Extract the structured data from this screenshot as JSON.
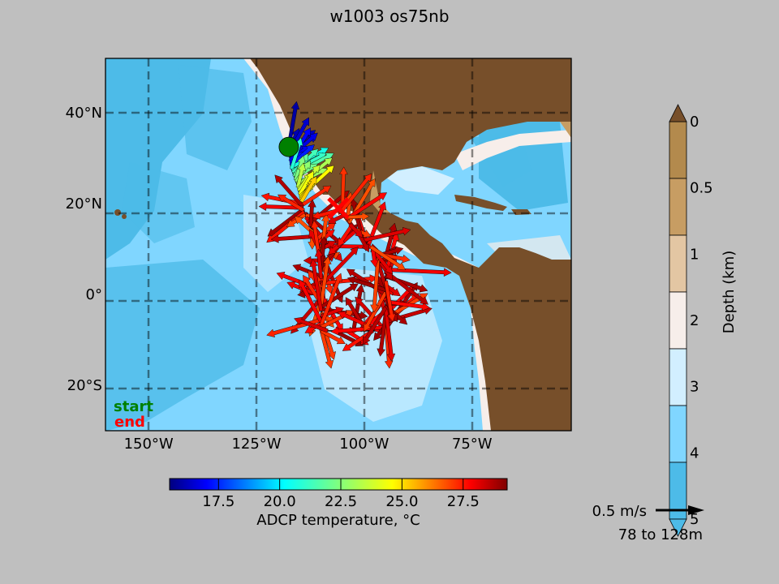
{
  "title": "w1003 os75nb",
  "chart_data": {
    "type": "map-quiver",
    "title": "w1003 os75nb",
    "lon_range": [
      -160,
      -52
    ],
    "lat_range": [
      -30,
      52
    ],
    "lon_ticks": [
      -150,
      -125,
      -100,
      -75
    ],
    "lon_tick_labels": [
      "150°W",
      "125°W",
      "100°W",
      "75°W"
    ],
    "lat_ticks": [
      40,
      20,
      0,
      -20
    ],
    "lat_tick_labels": [
      "40°N",
      "20°N",
      "0°",
      "20°S"
    ],
    "grid": true,
    "track": [
      [
        -117.5,
        32.5
      ],
      [
        -117.0,
        28.0
      ],
      [
        -115.5,
        24.0
      ],
      [
        -114.5,
        20.0
      ],
      [
        -113.5,
        17.0
      ],
      [
        -110.0,
        10.0
      ],
      [
        -110.0,
        5.0
      ],
      [
        -110.0,
        0.0
      ],
      [
        -110.0,
        -4.0
      ],
      [
        -110.0,
        -8.0
      ],
      [
        -95.0,
        -8.0
      ],
      [
        -95.0,
        -4.0
      ],
      [
        -95.0,
        0.0
      ],
      [
        -95.0,
        5.0
      ],
      [
        -98.0,
        10.0
      ],
      [
        -103.0,
        15.0
      ],
      [
        -106.0,
        19.0
      ]
    ],
    "start": {
      "label": "start",
      "lon": -117.5,
      "lat": 32.5,
      "color": "#008000"
    },
    "end": {
      "label": "end",
      "lon": -106,
      "lat": 19,
      "color": "#ff0000"
    },
    "temperature_colorbar": {
      "label": "ADCP temperature, °C",
      "range": [
        15.5,
        29.3
      ],
      "ticks": [
        17.5,
        20.0,
        22.5,
        25.0,
        27.5
      ],
      "tick_labels": [
        "17.5",
        "20.0",
        "22.5",
        "25.0",
        "27.5"
      ]
    },
    "depth_colorbar": {
      "label": "Depth (km)",
      "levels": [
        "0",
        "0.5",
        "1",
        "2",
        "3",
        "4",
        "5"
      ],
      "colors": [
        "#b38a4d",
        "#c79d63",
        "#e3c6a3",
        "#f7eeea",
        "#d2efff",
        "#80d6ff",
        "#4dbbe8"
      ],
      "land_color": "#774f2a",
      "extend": "both"
    },
    "reference_vector": {
      "label": "0.5 m/s",
      "speed_mps": 0.5
    },
    "depth_range_label": "78 to 128m"
  }
}
